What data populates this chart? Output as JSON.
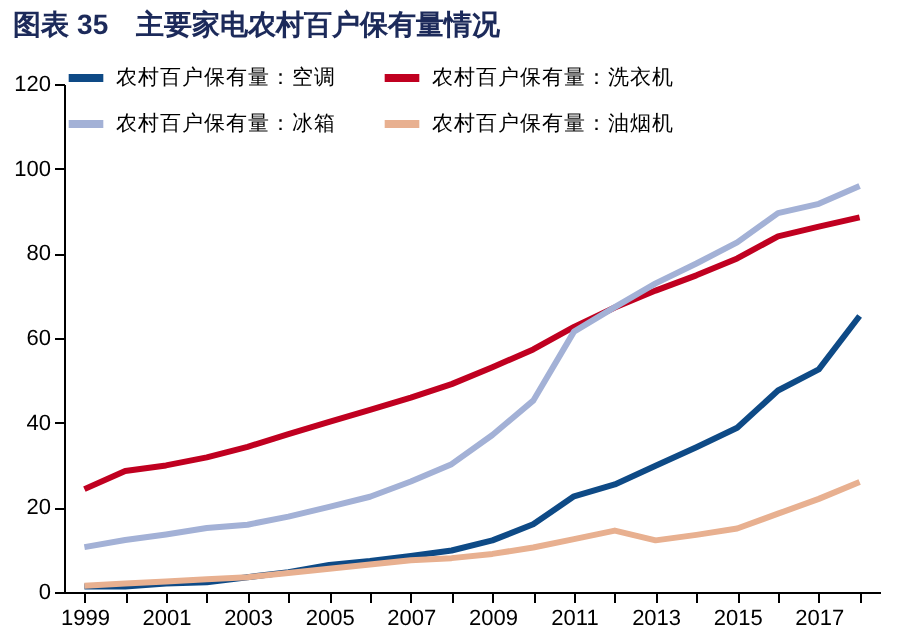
{
  "chart_data": {
    "type": "line",
    "title": "图表 35　主要家电农村百户保有量情况",
    "categories": [
      "1999",
      null,
      "2001",
      null,
      "2003",
      null,
      "2005",
      null,
      "2007",
      null,
      "2009",
      null,
      "2011",
      null,
      "2013",
      null,
      "2015",
      null,
      "2017",
      null
    ],
    "series": [
      {
        "name": "农村百户保有量：空调",
        "color": "#0e4a86",
        "values": [
          1.3,
          1.3,
          2,
          2.3,
          3.5,
          4.7,
          6.4,
          7.3,
          8.5,
          9.8,
          12.2,
          16,
          22.6,
          25.4,
          29.8,
          34.2,
          38.8,
          47.6,
          52.6,
          65.2
        ]
      },
      {
        "name": "农村百户保有量：洗衣机",
        "color": "#c00020",
        "values": [
          24.3,
          28.6,
          29.9,
          31.8,
          34.3,
          37.3,
          40.2,
          43,
          45.9,
          49.1,
          53.1,
          57.3,
          62.6,
          67.2,
          71.2,
          74.8,
          78.8,
          84,
          86.3,
          88.5
        ]
      },
      {
        "name": "农村百户保有量：冰箱",
        "color": "#a3b1d6",
        "values": [
          10.6,
          12.3,
          13.6,
          15.1,
          15.9,
          17.8,
          20.1,
          22.5,
          26.1,
          30.2,
          37.1,
          45.2,
          61.5,
          67.3,
          72.9,
          77.6,
          82.6,
          89.5,
          91.7,
          95.9
        ]
      },
      {
        "name": "农村百户保有量：油烟机",
        "color": "#e8b090",
        "values": [
          1.5,
          2,
          2.5,
          3,
          3.5,
          4.5,
          5.5,
          6.5,
          7.5,
          8,
          9,
          10.5,
          12.5,
          14.5,
          12.2,
          13.5,
          15,
          18.5,
          22,
          26
        ]
      }
    ],
    "ylim": [
      0,
      120
    ],
    "yticks": [
      0,
      20,
      40,
      60,
      80,
      100,
      120
    ],
    "grid": false,
    "legend": "top",
    "marker": "none",
    "line_style": "solid"
  }
}
